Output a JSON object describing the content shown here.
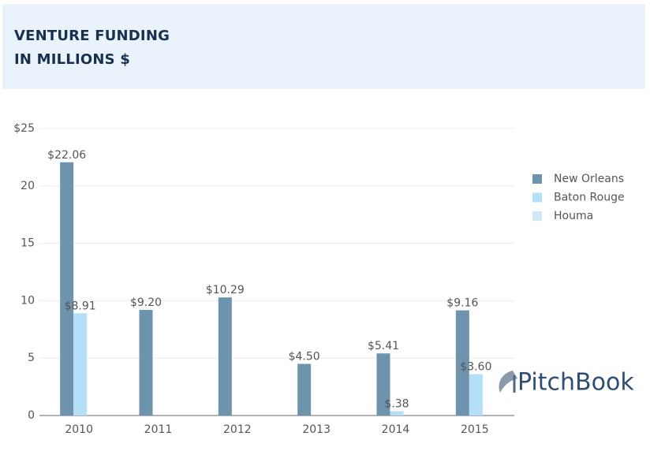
{
  "chart_data": {
    "type": "bar",
    "title": [
      "VENTURE FUNDING",
      "IN MILLIONS $"
    ],
    "categories": [
      "2010",
      "2011",
      "2012",
      "2013",
      "2014",
      "2015"
    ],
    "series": [
      {
        "name": "New Orleans",
        "color": "#6e93ad",
        "values": [
          22.06,
          9.2,
          10.29,
          4.5,
          5.41,
          9.16
        ],
        "value_labels": [
          "$22.06",
          "$9.20",
          "$10.29",
          "$4.50",
          "$5.41",
          "$9.16"
        ]
      },
      {
        "name": "Baton Rouge",
        "color": "#b3e0f7",
        "values": [
          8.91,
          null,
          null,
          null,
          0.38,
          3.6
        ],
        "value_labels": [
          "$8.91",
          null,
          null,
          null,
          "$.38",
          "$3.60"
        ]
      },
      {
        "name": "Houma",
        "color": "#cdeaf5",
        "values": [
          null,
          null,
          null,
          null,
          null,
          null
        ]
      }
    ],
    "ylim": [
      0,
      25
    ],
    "yticks": [
      0,
      5,
      10,
      15,
      20,
      {
        "value": 25,
        "label": "$25"
      }
    ],
    "grid": true,
    "legend": "right",
    "watermark": "PitchBook"
  }
}
